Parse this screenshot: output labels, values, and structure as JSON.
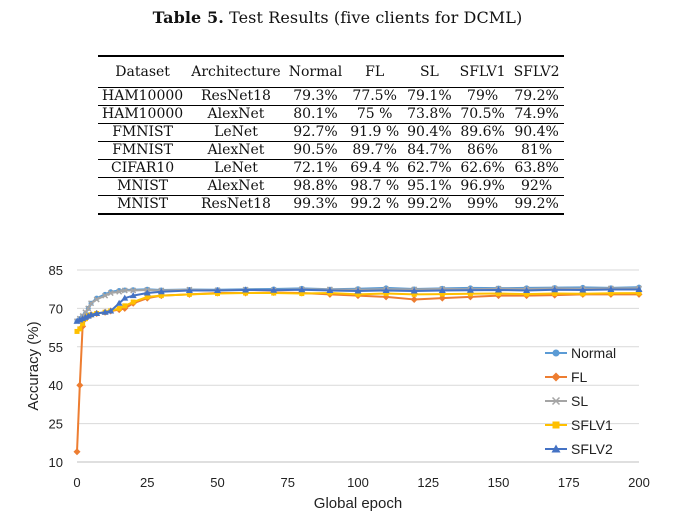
{
  "caption": {
    "label": "Table 5.",
    "text": "Test Results (five clients for DCML)"
  },
  "table": {
    "headers": [
      "Dataset",
      "Architecture",
      "Normal",
      "FL",
      "SL",
      "SFLV1",
      "SFLV2"
    ],
    "rows": [
      [
        "HAM10000",
        "ResNet18",
        "79.3%",
        "77.5%",
        "79.1%",
        "79%",
        "79.2%"
      ],
      [
        "HAM10000",
        "AlexNet",
        "80.1%",
        "75 %",
        "73.8%",
        "70.5%",
        "74.9%"
      ],
      [
        "FMNIST",
        "LeNet",
        "92.7%",
        "91.9 %",
        "90.4%",
        "89.6%",
        "90.4%"
      ],
      [
        "FMNIST",
        "AlexNet",
        "90.5%",
        "89.7%",
        "84.7%",
        "86%",
        "81%"
      ],
      [
        "CIFAR10",
        "LeNet",
        "72.1%",
        "69.4 %",
        "62.7%",
        "62.6%",
        "63.8%"
      ],
      [
        "MNIST",
        "AlexNet",
        "98.8%",
        "98.7 %",
        "95.1%",
        "96.9%",
        "92%"
      ],
      [
        "MNIST",
        "ResNet18",
        "99.3%",
        "99.2 %",
        "99.2%",
        "99%",
        "99.2%"
      ]
    ]
  },
  "chart_data": {
    "type": "line",
    "title": "",
    "xlabel": "Global epoch",
    "ylabel": "Accuracy (%)",
    "xlim": [
      0,
      200
    ],
    "ylim": [
      10,
      85
    ],
    "xticks": [
      0,
      25,
      50,
      75,
      100,
      125,
      150,
      175,
      200
    ],
    "yticks": [
      10,
      25,
      40,
      55,
      70,
      85
    ],
    "grid": true,
    "legend_position": "right",
    "x": [
      0,
      1,
      2,
      3,
      4,
      5,
      7,
      10,
      12,
      15,
      17,
      20,
      25,
      30,
      40,
      50,
      60,
      70,
      80,
      90,
      100,
      110,
      120,
      130,
      140,
      150,
      160,
      170,
      180,
      190,
      200
    ],
    "series": [
      {
        "name": "Normal",
        "color": "#5b9bd5",
        "marker": "circle",
        "values": [
          65,
          66,
          67,
          68,
          70,
          72,
          74,
          75.5,
          76.5,
          77,
          77.2,
          77.3,
          77.5,
          77.2,
          77.4,
          77.3,
          77.5,
          77.6,
          77.8,
          77.5,
          77.7,
          78,
          77.6,
          77.8,
          78,
          77.9,
          78,
          78.1,
          78.2,
          78,
          78.3
        ]
      },
      {
        "name": "FL",
        "color": "#ed7d31",
        "marker": "diamond",
        "values": [
          14,
          40,
          63,
          66,
          67,
          67.5,
          68,
          68.5,
          69,
          69.5,
          70,
          72,
          74,
          75,
          75.5,
          76,
          76,
          76.2,
          76,
          75.5,
          75,
          74.5,
          73.5,
          74,
          74.5,
          75,
          75,
          75.2,
          75.5,
          75.5,
          75.5
        ]
      },
      {
        "name": "SL",
        "color": "#a5a5a5",
        "marker": "x",
        "values": [
          65,
          66,
          67,
          68.5,
          70,
          72,
          73.5,
          75,
          76,
          76.5,
          77,
          77,
          77.2,
          77,
          77.3,
          77.1,
          77.3,
          77.2,
          77.5,
          77.4,
          77.3,
          77.5,
          77.4,
          77.6,
          77.5,
          77.7,
          77.6,
          77.8,
          77.7,
          77.8,
          77.8
        ]
      },
      {
        "name": "SFLV1",
        "color": "#ffc000",
        "marker": "square",
        "values": [
          61,
          62,
          64,
          66,
          67,
          67.5,
          68,
          68.5,
          69,
          70,
          71,
          72.5,
          74.5,
          75,
          75.5,
          75.8,
          76,
          76,
          75.8,
          76,
          75.5,
          75.8,
          75.5,
          75.6,
          75.7,
          75.8,
          75.6,
          75.8,
          75.7,
          75.9,
          76
        ]
      },
      {
        "name": "SFLV2",
        "color": "#4472c4",
        "marker": "triangle",
        "values": [
          65,
          65.5,
          66,
          66.5,
          67,
          67.5,
          68,
          68.5,
          69,
          72,
          74,
          75,
          76,
          76.5,
          77,
          77,
          77.2,
          77.1,
          77.3,
          77,
          76.8,
          77,
          76.8,
          77,
          77.1,
          77.2,
          77,
          77.3,
          77.2,
          77.4,
          77.4
        ]
      }
    ]
  }
}
